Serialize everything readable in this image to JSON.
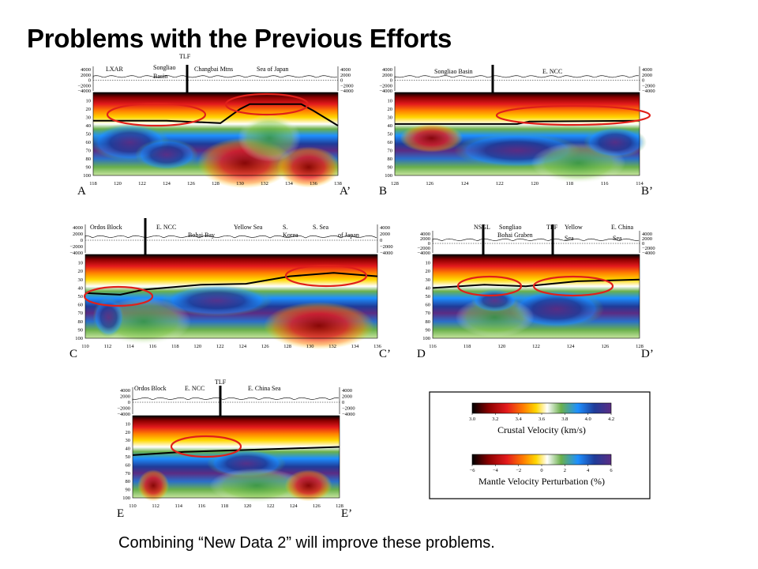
{
  "slide": {
    "title": "Problems with the Previous Efforts",
    "caption": "Combining “New Data 2” will improve these problems."
  },
  "colors": {
    "crustal": [
      "#000000",
      "#8b0000",
      "#e41a1c",
      "#ff7f00",
      "#ffd700",
      "#ffffff",
      "#6ab04c",
      "#1e90ff",
      "#1f3c99",
      "#5b2c83"
    ],
    "ellipse": "#e0201a"
  },
  "elevation_ticks": [
    "4000",
    "2000",
    "0",
    "−2000",
    "−4000"
  ],
  "depth_ticks": [
    "10",
    "20",
    "30",
    "40",
    "50",
    "60",
    "70",
    "80",
    "90",
    "100"
  ],
  "panels": [
    {
      "start_label": "A",
      "end_label": "A’",
      "x_ticks": [
        "118",
        "120",
        "122",
        "124",
        "126",
        "128",
        "130",
        "132",
        "134",
        "136",
        "138"
      ],
      "regions": [
        {
          "text": "LXAR"
        },
        {
          "text": "Songliao"
        },
        {
          "text": "Basin"
        },
        {
          "text": "TLF"
        },
        {
          "text": "Changbai Mtns"
        },
        {
          "text": "Sea of Japan"
        }
      ]
    },
    {
      "start_label": "B",
      "end_label": "B’",
      "x_ticks": [
        "128",
        "126",
        "124",
        "122",
        "120",
        "118",
        "116",
        "114"
      ],
      "regions": [
        {
          "text": "Songliao Basin"
        },
        {
          "text": "E. NCC"
        }
      ]
    },
    {
      "start_label": "C",
      "end_label": "C’",
      "x_ticks": [
        "110",
        "112",
        "114",
        "116",
        "118",
        "120",
        "122",
        "124",
        "126",
        "128",
        "130",
        "132",
        "134",
        "136"
      ],
      "regions": [
        {
          "text": "Ordos Block"
        },
        {
          "text": "E. NCC"
        },
        {
          "text": "Bohai Bay"
        },
        {
          "text": "Yellow Sea"
        },
        {
          "text": "S."
        },
        {
          "text": "Korea"
        },
        {
          "text": "S. Sea"
        },
        {
          "text": "of Japan"
        }
      ]
    },
    {
      "start_label": "D",
      "end_label": "D’",
      "x_ticks": [
        "116",
        "118",
        "120",
        "122",
        "124",
        "126",
        "128"
      ],
      "regions": [
        {
          "text": "NSGL"
        },
        {
          "text": "Songliao"
        },
        {
          "text": "Bohai Graben"
        },
        {
          "text": "TLF"
        },
        {
          "text": "Yellow"
        },
        {
          "text": "Sea"
        },
        {
          "text": "E. China"
        },
        {
          "text": "Sea"
        }
      ]
    },
    {
      "start_label": "E",
      "end_label": "E’",
      "x_ticks": [
        "110",
        "112",
        "114",
        "116",
        "118",
        "120",
        "122",
        "124",
        "126",
        "128"
      ],
      "regions": [
        {
          "text": "Ordos Block"
        },
        {
          "text": "E. NCC"
        },
        {
          "text": "TLF"
        },
        {
          "text": "E. China Sea"
        }
      ]
    }
  ],
  "legend": {
    "crustal": {
      "ticks": [
        "3.0",
        "3.2",
        "3.4",
        "3.6",
        "3.8",
        "4.0",
        "4.2"
      ],
      "label": "Crustal Velocity (km/s)"
    },
    "mantle": {
      "ticks": [
        "−6",
        "−4",
        "−2",
        "0",
        "2",
        "4",
        "6"
      ],
      "label": "Mantle Velocity Perturbation (%)"
    }
  }
}
